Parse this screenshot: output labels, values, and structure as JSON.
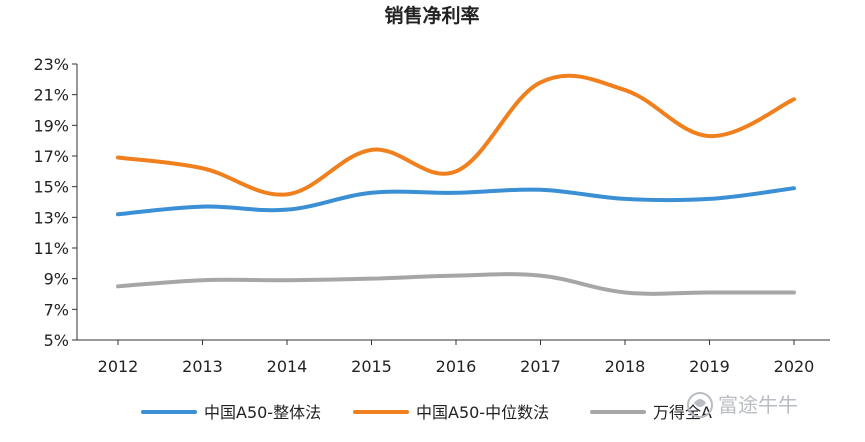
{
  "chart_data": {
    "type": "line",
    "title": "销售净利率",
    "xlabel": "",
    "ylabel": "",
    "categories": [
      "2012",
      "2013",
      "2014",
      "2015",
      "2016",
      "2017",
      "2018",
      "2019",
      "2020"
    ],
    "ylim": [
      5,
      23
    ],
    "yticks": [
      5,
      7,
      9,
      11,
      13,
      15,
      17,
      19,
      21,
      23
    ],
    "ytick_labels": [
      "5%",
      "7%",
      "9%",
      "11%",
      "13%",
      "15%",
      "17%",
      "19%",
      "21%",
      "23%"
    ],
    "grid": false,
    "legend_position": "bottom",
    "series": [
      {
        "name": "中国A50-整体法",
        "color": "#3b8fd4",
        "values": [
          13.2,
          13.7,
          13.5,
          14.6,
          14.6,
          14.8,
          14.2,
          14.2,
          14.9
        ]
      },
      {
        "name": "中国A50-中位数法",
        "color": "#f07f1e",
        "values": [
          16.9,
          16.2,
          14.5,
          17.4,
          16.0,
          21.8,
          21.3,
          18.3,
          20.7
        ]
      },
      {
        "name": "万得全A",
        "color": "#a6a6a6",
        "values": [
          8.5,
          8.9,
          8.9,
          9.0,
          9.2,
          9.2,
          8.1,
          8.1,
          8.1
        ]
      }
    ]
  },
  "watermark": {
    "text": "富途牛牛",
    "icon": "futu-bull-logo"
  }
}
